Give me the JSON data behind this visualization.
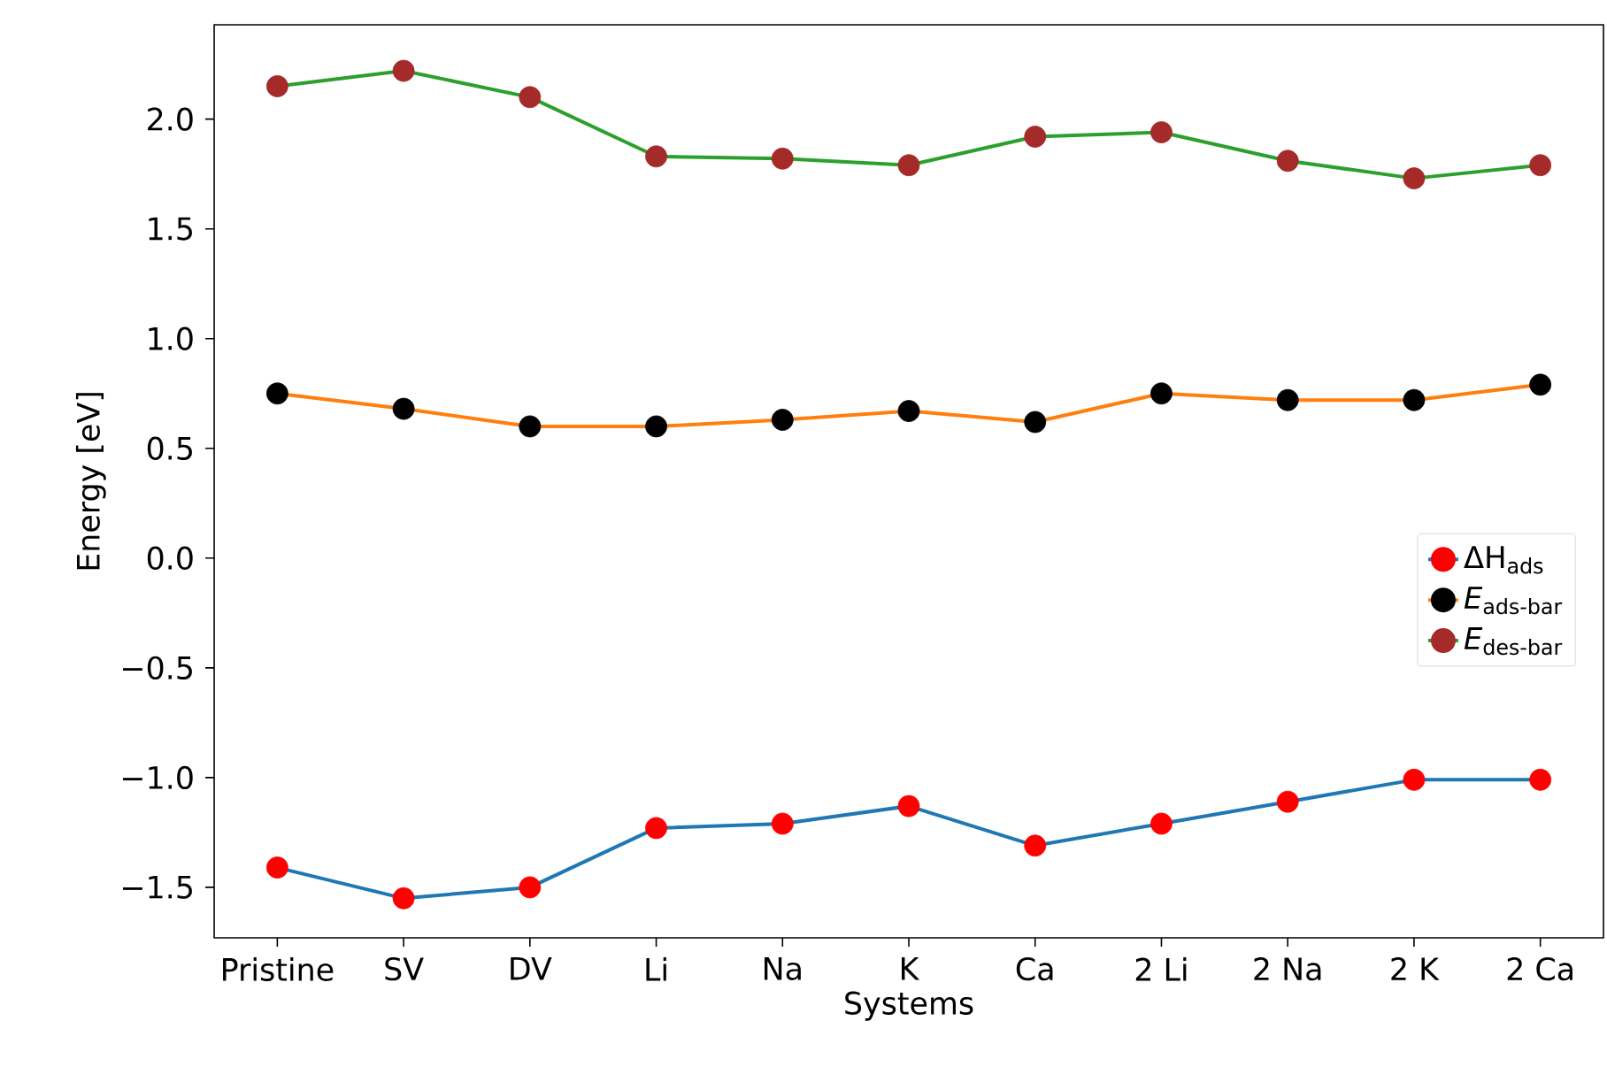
{
  "chart_data": {
    "type": "line",
    "xlabel": "Systems",
    "ylabel": "Energy [eV]",
    "categories": [
      "Pristine",
      "SV",
      "DV",
      "Li",
      "Na",
      "K",
      "Ca",
      "2 Li",
      "2 Na",
      "2 K",
      "2 Ca"
    ],
    "ylim": [
      -1.73,
      2.43
    ],
    "yticks": [
      {
        "value": -1.5,
        "label": "−1.5"
      },
      {
        "value": -1.0,
        "label": "−1.0"
      },
      {
        "value": -0.5,
        "label": "−0.5"
      },
      {
        "value": 0.0,
        "label": "0.0"
      },
      {
        "value": 0.5,
        "label": "0.5"
      },
      {
        "value": 1.0,
        "label": "1.0"
      },
      {
        "value": 1.5,
        "label": "1.5"
      },
      {
        "value": 2.0,
        "label": "2.0"
      }
    ],
    "legend": "right",
    "marker": "circle",
    "line_style": "solid",
    "series": [
      {
        "name": "ΔH$_{ads}$",
        "color": "#1f77b4",
        "colors": [
          "#ff0000",
          "#ff0000",
          "#ff0000",
          "#ff0000",
          "#ff0000",
          "#ff0000",
          "#ff0000",
          "#ff0000",
          "#ff0000",
          "#ff0000",
          "#ff0000"
        ],
        "values": [
          -1.41,
          -1.55,
          -1.5,
          -1.23,
          -1.21,
          -1.13,
          -1.31,
          -1.21,
          -1.11,
          -1.01,
          -1.01
        ]
      },
      {
        "name": "*E*$_{ads-bar}$",
        "color": "#ff7f0e",
        "colors": [
          "#000000",
          "#000000",
          "#000000",
          "#000000",
          "#000000",
          "#000000",
          "#000000",
          "#000000",
          "#000000",
          "#000000",
          "#000000"
        ],
        "values": [
          0.75,
          0.68,
          0.6,
          0.6,
          0.63,
          0.67,
          0.62,
          0.75,
          0.72,
          0.72,
          0.79
        ]
      },
      {
        "name": "*E*$_{des-bar}$",
        "color": "#2ca02c",
        "colors": [
          "#a52a2a",
          "#a52a2a",
          "#a52a2a",
          "#a52a2a",
          "#a52a2a",
          "#a52a2a",
          "#a52a2a",
          "#a52a2a",
          "#a52a2a",
          "#a52a2a",
          "#a52a2a"
        ],
        "values": [
          2.15,
          2.22,
          2.1,
          1.83,
          1.82,
          1.79,
          1.92,
          1.94,
          1.81,
          1.73,
          1.79
        ]
      }
    ]
  }
}
